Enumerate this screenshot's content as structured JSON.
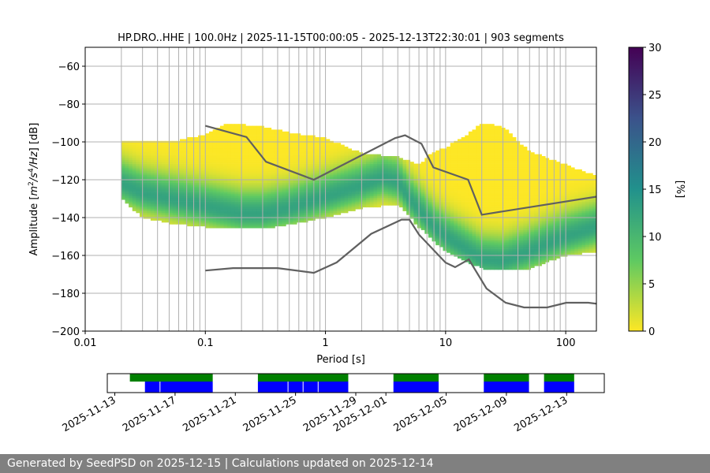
{
  "chart_data": {
    "type": "heatmap",
    "title": "HP.DRO..HHE | 100.0Hz | 2025-11-15T00:00:05 - 2025-12-13T22:30:01 | 903 segments",
    "xlabel": "Period [s]",
    "ylabel": "Amplitude [m²/s⁴/Hz] [dB]",
    "x_scale": "log",
    "xlim": [
      0.01,
      180
    ],
    "ylim": [
      -200,
      -50
    ],
    "x_ticks": [
      {
        "value": 0.01,
        "label": "0.01"
      },
      {
        "value": 0.1,
        "label": "0.1"
      },
      {
        "value": 1,
        "label": "1"
      },
      {
        "value": 10,
        "label": "10"
      },
      {
        "value": 100,
        "label": "100"
      }
    ],
    "y_ticks": [
      -60,
      -80,
      -100,
      -120,
      -140,
      -160,
      -180,
      -200
    ],
    "grid_x_periods": [
      0.02,
      0.03,
      0.04,
      0.05,
      0.06,
      0.07,
      0.08,
      0.09,
      0.1,
      0.2,
      0.3,
      0.4,
      0.5,
      0.6,
      0.7,
      0.8,
      0.9,
      1,
      2,
      3,
      4,
      5,
      6,
      7,
      8,
      9,
      10,
      20,
      30,
      40,
      50,
      60,
      70,
      80,
      90,
      100
    ],
    "grid_y_values": [
      -60,
      -80,
      -100,
      -120,
      -140,
      -160,
      -180
    ],
    "colorbar": {
      "label": "[%]",
      "min": 0,
      "max": 30,
      "ticks": [
        0,
        5,
        10,
        15,
        20,
        25,
        30
      ],
      "colormap": [
        "#fde725",
        "#5ec962",
        "#21918c",
        "#3b528b",
        "#440154"
      ]
    },
    "psd_mode": [
      [
        0.02,
        -122
      ],
      [
        0.03,
        -127
      ],
      [
        0.05,
        -130
      ],
      [
        0.1,
        -134
      ],
      [
        0.2,
        -138
      ],
      [
        0.3,
        -138
      ],
      [
        0.5,
        -135
      ],
      [
        0.8,
        -131
      ],
      [
        1,
        -129
      ],
      [
        2,
        -123
      ],
      [
        3,
        -119
      ],
      [
        4,
        -121
      ],
      [
        5,
        -130
      ],
      [
        6,
        -136
      ],
      [
        8,
        -145
      ],
      [
        10,
        -150
      ],
      [
        15,
        -157
      ],
      [
        20,
        -162
      ],
      [
        30,
        -163
      ],
      [
        50,
        -158
      ],
      [
        100,
        -150
      ],
      [
        180,
        -145
      ]
    ],
    "psd_upper": [
      [
        0.02,
        -100
      ],
      [
        0.05,
        -100
      ],
      [
        0.1,
        -96
      ],
      [
        0.15,
        -90
      ],
      [
        0.3,
        -92
      ],
      [
        0.5,
        -95
      ],
      [
        1,
        -98
      ],
      [
        2,
        -106
      ],
      [
        4,
        -108
      ],
      [
        6,
        -112
      ],
      [
        8,
        -105
      ],
      [
        10,
        -103
      ],
      [
        15,
        -96
      ],
      [
        20,
        -90
      ],
      [
        30,
        -92
      ],
      [
        50,
        -105
      ],
      [
        100,
        -112
      ],
      [
        180,
        -118
      ]
    ],
    "psd_lower": [
      [
        0.02,
        -130
      ],
      [
        0.03,
        -140
      ],
      [
        0.05,
        -143
      ],
      [
        0.1,
        -145
      ],
      [
        0.3,
        -146
      ],
      [
        0.7,
        -142
      ],
      [
        1,
        -140
      ],
      [
        2,
        -135
      ],
      [
        4,
        -133
      ],
      [
        6,
        -145
      ],
      [
        10,
        -158
      ],
      [
        20,
        -167
      ],
      [
        30,
        -168
      ],
      [
        50,
        -167
      ],
      [
        100,
        -160
      ],
      [
        180,
        -158
      ]
    ],
    "nhnm": [
      [
        0.1,
        -91.5
      ],
      [
        0.22,
        -97.4
      ],
      [
        0.32,
        -110.5
      ],
      [
        0.8,
        -120
      ],
      [
        3.8,
        -98
      ],
      [
        4.6,
        -96.5
      ],
      [
        6.3,
        -101
      ],
      [
        7.9,
        -113.5
      ],
      [
        15.4,
        -120
      ],
      [
        20,
        -138.5
      ],
      [
        354.8,
        -126
      ]
    ],
    "nlnm": [
      [
        0.1,
        -168
      ],
      [
        0.17,
        -166.7
      ],
      [
        0.4,
        -166.7
      ],
      [
        0.8,
        -169.2
      ],
      [
        1.24,
        -163.7
      ],
      [
        2.4,
        -148.6
      ],
      [
        4.3,
        -141.1
      ],
      [
        5,
        -141.1
      ],
      [
        6,
        -149
      ],
      [
        10,
        -163.8
      ],
      [
        12,
        -166.2
      ],
      [
        15.6,
        -162.1
      ],
      [
        21.9,
        -177.5
      ],
      [
        31.6,
        -185
      ],
      [
        45,
        -187.5
      ],
      [
        70,
        -187.5
      ],
      [
        101,
        -185
      ],
      [
        154,
        -185
      ],
      [
        328,
        -187.5
      ]
    ],
    "availability": {
      "x_ticks": [
        "2025-11-13",
        "2025-11-17",
        "2025-11-21",
        "2025-11-25",
        "2025-11-29",
        "2025-12-01",
        "2025-12-05",
        "2025-12-09",
        "2025-12-13"
      ],
      "x_tick_dates": [
        "2025-11-13",
        "2025-11-17",
        "2025-11-21",
        "2025-11-25",
        "2025-11-29",
        "2025-12-01",
        "2025-12-05",
        "2025-12-09",
        "2025-12-13"
      ],
      "xlim_dates": [
        "2025-11-12.5",
        "2025-12-15.5"
      ],
      "green_segments": [
        [
          "2025-11-14.0",
          "2025-11-19.5"
        ],
        [
          "2025-11-22.5",
          "2025-11-28.5"
        ],
        [
          "2025-11-31.5",
          "2025-12-04.5"
        ],
        [
          "2025-12-07.5",
          "2025-12-10.5"
        ],
        [
          "2025-12-11.5",
          "2025-12-13.5"
        ]
      ],
      "blue_segments": [
        [
          "2025-11-15.0",
          "2025-11-19.5"
        ],
        [
          "2025-11-22.5",
          "2025-11-28.5"
        ],
        [
          "2025-11-31.5",
          "2025-12-04.5"
        ],
        [
          "2025-12-07.5",
          "2025-12-10.5"
        ],
        [
          "2025-12-11.5",
          "2025-12-13.5"
        ]
      ],
      "blue_gaps": [
        "2025-11-16.0",
        "2025-11-24.5",
        "2025-11-25.5",
        "2025-11-26.5"
      ],
      "green_color": "#008000",
      "blue_color": "#0000ff"
    },
    "colors": {
      "model_line": "#606060",
      "grid": "#b0b0b0"
    }
  },
  "footer": {
    "text": "Generated by SeedPSD on 2025-12-15 | Calculations updated on 2025-12-14"
  }
}
